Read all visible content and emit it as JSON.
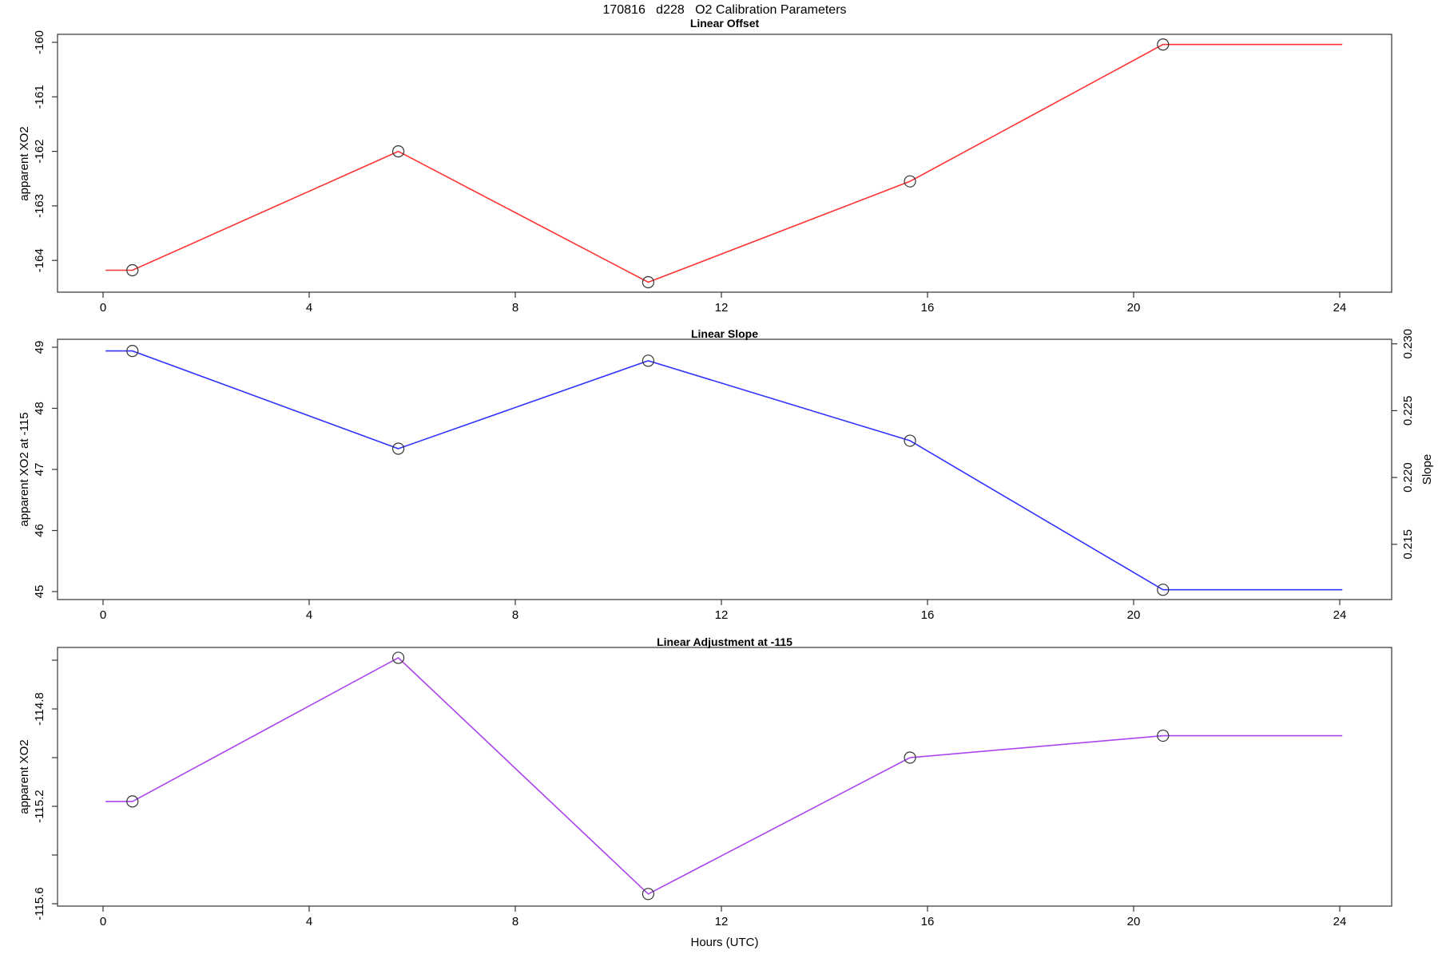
{
  "title": "170816   d228   O2 Calibration Parameters",
  "xlabel": "Hours (UTC)",
  "x_ticks": [
    0,
    4,
    8,
    12,
    16,
    20,
    24
  ],
  "style": {
    "background": "#ffffff",
    "axis_color": "#333333",
    "marker": "open-circle",
    "marker_color": "#333333"
  },
  "chart_data": [
    {
      "type": "line",
      "title": "Linear Offset",
      "ylabel": "apparent XO2",
      "line_color": "#ff3333",
      "x_hours": [
        0.57,
        5.73,
        10.58,
        15.66,
        20.57
      ],
      "values": [
        -164.18,
        -162.0,
        -164.4,
        -162.55,
        -160.04
      ],
      "line_extends_flat_to_x": [
        0.05,
        24.05
      ],
      "xlim": [
        -0.9,
        25.0
      ],
      "ylim": [
        -164.58,
        -159.85
      ],
      "grid": false,
      "legend": "none",
      "y_ticks": [
        {
          "v": -160,
          "label": "-160"
        },
        {
          "v": -161,
          "label": "-161"
        },
        {
          "v": -162,
          "label": "-162"
        },
        {
          "v": -163,
          "label": "-163"
        },
        {
          "v": -164,
          "label": "-164"
        }
      ]
    },
    {
      "type": "line",
      "title": "Linear Slope",
      "ylabel": "apparent XO2 at -115",
      "ylabel_right": "Slope",
      "line_color": "#3333ff",
      "x_hours": [
        0.57,
        5.73,
        10.58,
        15.66,
        20.57
      ],
      "values": [
        48.94,
        47.34,
        48.78,
        47.47,
        45.03
      ],
      "values_right_scale": [
        0.2295,
        0.2222,
        0.2287,
        0.2228,
        0.2116
      ],
      "line_extends_flat_to_x": [
        0.05,
        24.05
      ],
      "xlim": [
        -0.9,
        25.0
      ],
      "ylim": [
        44.87,
        49.13
      ],
      "ylim_right": [
        0.2109,
        0.2303
      ],
      "grid": false,
      "legend": "none",
      "y_ticks": [
        {
          "v": 49,
          "label": "49"
        },
        {
          "v": 48,
          "label": "48"
        },
        {
          "v": 47,
          "label": "47"
        },
        {
          "v": 46,
          "label": "46"
        },
        {
          "v": 45,
          "label": "45"
        }
      ],
      "y_ticks_right": [
        {
          "v": 0.23,
          "label": "0.230"
        },
        {
          "v": 0.225,
          "label": "0.225"
        },
        {
          "v": 0.22,
          "label": "0.220"
        },
        {
          "v": 0.215,
          "label": "0.215"
        }
      ]
    },
    {
      "type": "line",
      "title": "Linear Adjustment at -115",
      "ylabel": "apparent XO2",
      "line_color": "#aa44ee",
      "x_hours": [
        0.57,
        5.73,
        10.58,
        15.66,
        20.57
      ],
      "values": [
        -115.18,
        -114.59,
        -115.56,
        -115.0,
        -114.91
      ],
      "line_extends_flat_to_x": [
        0.05,
        24.05
      ],
      "xlim": [
        -0.9,
        25.0
      ],
      "ylim": [
        -115.61,
        -114.55
      ],
      "grid": false,
      "legend": "none",
      "y_ticks": [
        {
          "v": -114.6,
          "label": ""
        },
        {
          "v": -114.8,
          "label": "-114.8"
        },
        {
          "v": -115.0,
          "label": ""
        },
        {
          "v": -115.2,
          "label": "-115.2"
        },
        {
          "v": -115.4,
          "label": ""
        },
        {
          "v": -115.6,
          "label": "-115.6"
        }
      ]
    }
  ]
}
